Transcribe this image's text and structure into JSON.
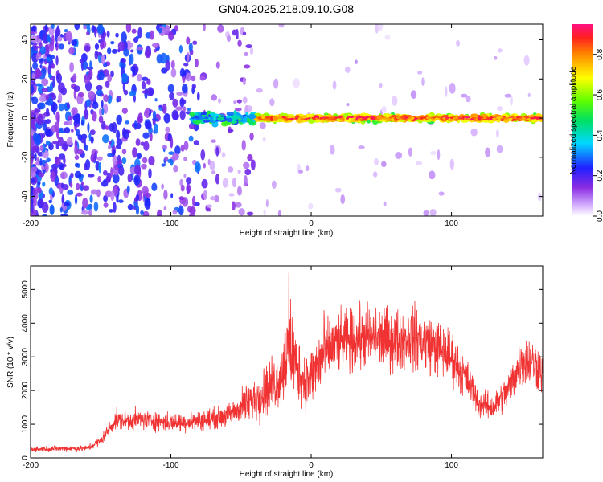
{
  "title": "GN04.2025.218.09.10.G08",
  "chart_data": [
    {
      "type": "heatmap",
      "xlabel": "Height of straight line (km)",
      "ylabel": "Frequency (Hz)",
      "xlim": [
        -200,
        165
      ],
      "ylim": [
        -50,
        48
      ],
      "xticks": [
        -200,
        -100,
        0,
        100
      ],
      "yticks": [
        -40,
        -20,
        0,
        20,
        40
      ],
      "colorbar": {
        "label": "Normalized spectral amplitude",
        "range": [
          0,
          0.95
        ],
        "ticks": [
          0.0,
          0.2,
          0.4,
          0.6,
          0.8
        ]
      },
      "ridge": {
        "center_frequency_hz": 0,
        "onset_height_km": -40,
        "peak_amplitude": 0.95
      }
    },
    {
      "type": "line",
      "xlabel": "Height of straight line (km)",
      "ylabel": "SNR (10 * v/v)",
      "xlim": [
        -200,
        165
      ],
      "ylim": [
        0,
        5700
      ],
      "xticks": [
        -200,
        -100,
        0,
        100
      ],
      "yticks": [
        0,
        1000,
        2000,
        3000,
        4000,
        5000
      ],
      "color": "#f03232",
      "series": [
        {
          "x": [
            -200,
            -180,
            -160,
            -150,
            -140,
            -120,
            -100,
            -80,
            -60,
            -50,
            -40,
            -30,
            -20,
            -17,
            -10,
            -5,
            0,
            10,
            20,
            40,
            60,
            70,
            80,
            90,
            100,
            110,
            120,
            130,
            140,
            150,
            160,
            165
          ],
          "y": [
            250,
            280,
            280,
            500,
            1100,
            1150,
            1050,
            1100,
            1250,
            1500,
            1750,
            2100,
            2500,
            3300,
            2700,
            2300,
            2400,
            3200,
            3400,
            3600,
            3500,
            3600,
            3450,
            3300,
            3000,
            2400,
            1600,
            1500,
            2000,
            2900,
            2800,
            2500
          ]
        }
      ]
    }
  ]
}
